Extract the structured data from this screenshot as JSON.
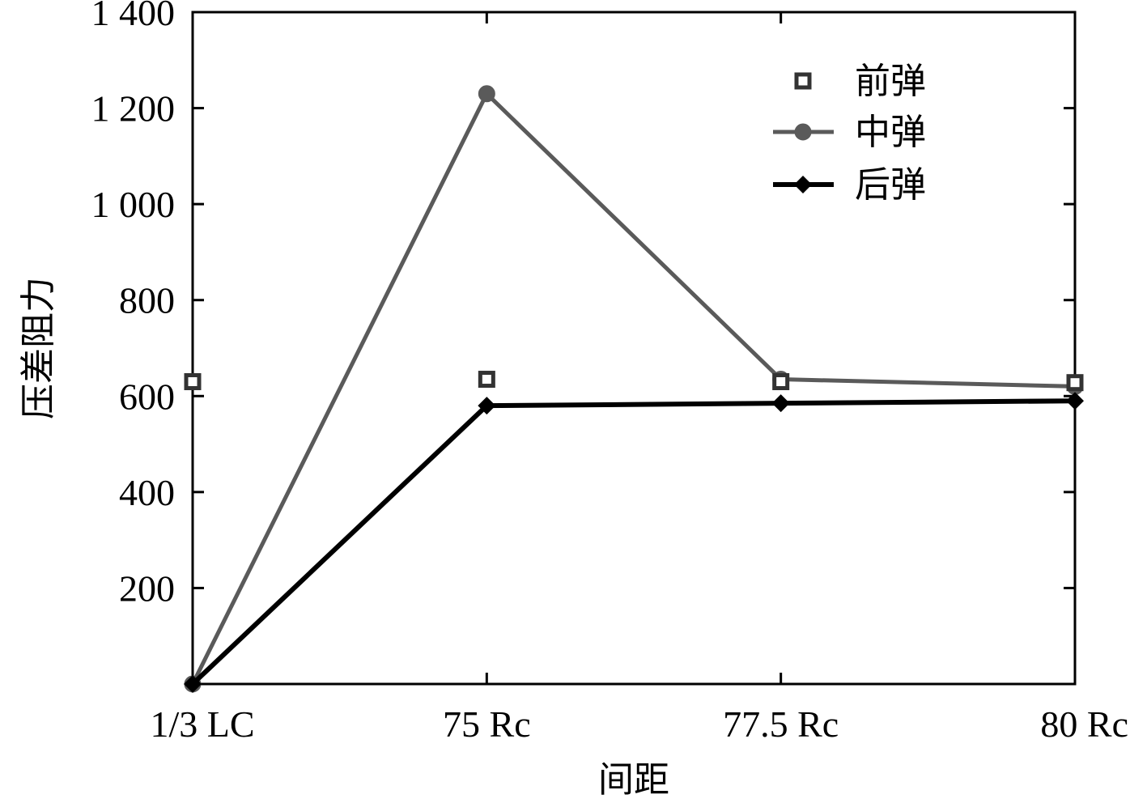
{
  "chart_data": {
    "type": "line",
    "categories": [
      "1/3 LC",
      "75 Rc",
      "77.5 Rc",
      "80 Rc"
    ],
    "xlabel": "间距",
    "ylabel": "压差阻力",
    "ylim": [
      0,
      1400
    ],
    "yticks": [
      200,
      400,
      600,
      800,
      1000,
      1200,
      1400
    ],
    "ytick_labels": [
      "200",
      "400",
      "600",
      "800",
      "1 000",
      "1 200",
      "1 400"
    ],
    "grid": false,
    "legend_position": "top-right",
    "series": [
      {
        "name": "前弹",
        "values": [
          630,
          635,
          630,
          628
        ],
        "style": "markers-only",
        "marker": "square-open",
        "color": "#333333"
      },
      {
        "name": "中弹",
        "values": [
          0,
          1230,
          635,
          620
        ],
        "style": "line-markers",
        "marker": "circle",
        "color": "#5a5a5a"
      },
      {
        "name": "后弹",
        "values": [
          0,
          580,
          585,
          590
        ],
        "style": "line-markers",
        "marker": "diamond",
        "color": "#000000"
      }
    ]
  }
}
